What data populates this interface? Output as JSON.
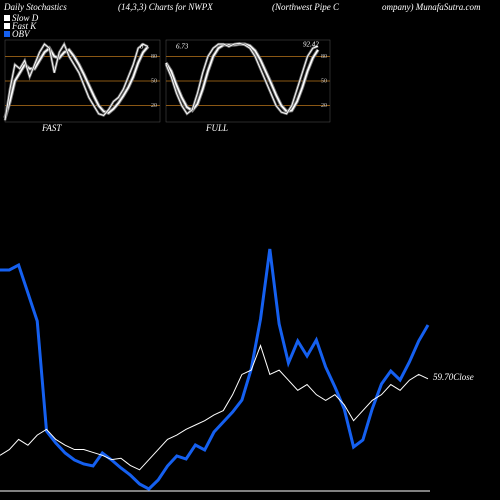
{
  "header": [
    "Daily Stochastics",
    "(14,3,3) Charts for NWPX",
    "(Northwest Pipe C",
    "ompany) MunafaSutra.com"
  ],
  "chart_data": [
    {
      "type": "line",
      "title": "FAST",
      "ylim": [
        0,
        100
      ],
      "yticks": [
        20,
        50,
        80
      ],
      "grid": true,
      "grid_color": "#b8741a",
      "annotations": [
        "8"
      ],
      "series": [
        {
          "name": "Slow D",
          "color": "#ffffff",
          "values": [
            5,
            25,
            50,
            60,
            70,
            65,
            65,
            75,
            85,
            90,
            80,
            78,
            85,
            88,
            80,
            70,
            58,
            45,
            32,
            20,
            13,
            11,
            16,
            23,
            32,
            42,
            55,
            72,
            85,
            92
          ]
        },
        {
          "name": "Fast K",
          "color": "#ffffff",
          "values": [
            2,
            40,
            70,
            65,
            75,
            55,
            70,
            85,
            95,
            90,
            60,
            85,
            95,
            80,
            70,
            60,
            45,
            30,
            20,
            10,
            8,
            15,
            25,
            30,
            40,
            55,
            70,
            90,
            95,
            92
          ]
        }
      ]
    },
    {
      "type": "line",
      "title": "FULL",
      "ylim": [
        0,
        100
      ],
      "yticks": [
        20,
        50,
        80
      ],
      "grid": true,
      "grid_color": "#b8741a",
      "annotations": [
        "6.73",
        "92.42"
      ],
      "series": [
        {
          "name": "Slow D",
          "color": "#ffffff",
          "values": [
            72,
            62,
            45,
            30,
            18,
            14,
            22,
            40,
            62,
            80,
            90,
            94,
            94,
            94,
            95,
            95,
            93,
            87,
            76,
            62,
            48,
            33,
            20,
            13,
            14,
            25,
            42,
            62,
            78,
            88
          ]
        },
        {
          "name": "Fast K",
          "color": "#ffffff",
          "values": [
            70,
            55,
            35,
            20,
            10,
            15,
            35,
            60,
            80,
            90,
            95,
            95,
            92,
            95,
            96,
            94,
            90,
            80,
            65,
            50,
            35,
            20,
            12,
            10,
            20,
            40,
            60,
            80,
            90,
            92.42
          ]
        }
      ]
    },
    {
      "type": "line",
      "ylim": [
        52,
        70
      ],
      "y2lim": [
        0,
        260
      ],
      "annotation": "59.70Close",
      "series": [
        {
          "name": "OBV",
          "color": "#1560f0",
          "axis": "y2",
          "values": [
            220,
            220,
            225,
            197,
            169,
            59,
            47,
            37,
            30,
            26,
            24,
            37,
            30,
            22,
            15,
            6,
            1,
            10,
            24,
            34,
            31,
            45,
            40,
            58,
            68,
            78,
            90,
            121,
            171,
            241,
            166,
            127,
            149,
            134,
            150,
            123,
            103,
            81,
            43,
            50,
            81,
            106,
            119,
            110,
            128,
            149,
            165
          ]
        },
        {
          "name": "Close",
          "color": "#ffffff",
          "values": [
            54.4,
            54.8,
            55.5,
            55.1,
            55.8,
            56.2,
            55.5,
            55.1,
            54.8,
            54.8,
            54.6,
            54.4,
            54.1,
            54.2,
            53.7,
            53.4,
            54.1,
            54.8,
            55.5,
            55.8,
            56.2,
            56.5,
            56.8,
            57.2,
            57.5,
            58.6,
            60.0,
            60.3,
            62.0,
            60.0,
            60.3,
            59.6,
            58.9,
            59.3,
            58.6,
            58.2,
            58.6,
            57.9,
            56.8,
            57.5,
            58.2,
            58.6,
            59.3,
            58.9,
            59.6,
            60.0,
            59.7
          ]
        }
      ]
    }
  ]
}
